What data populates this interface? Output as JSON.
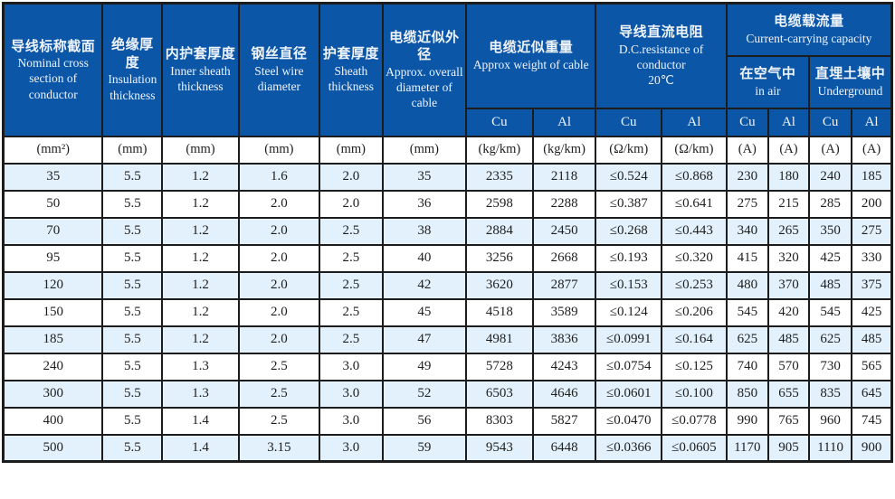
{
  "table": {
    "header": {
      "col_nominal": {
        "zh": "导线标称截面",
        "en": "Nominal cross section of conductor"
      },
      "col_insulation": {
        "zh": "绝缘厚度",
        "en": "Insulation thickness"
      },
      "col_inner_sheath": {
        "zh": "内护套厚度",
        "en": "Inner sheath thickness"
      },
      "col_steel_wire": {
        "zh": "钢丝直径",
        "en": "Steel wire diameter"
      },
      "col_sheath": {
        "zh": "护套厚度",
        "en": "Sheath thickness"
      },
      "col_diameter": {
        "zh": "电缆近似外径",
        "en": "Approx. overall diameter of cable"
      },
      "group_weight": {
        "zh": "电缆近似重量",
        "en": "Approx weight of cable"
      },
      "group_resistance": {
        "zh": "导线直流电阻",
        "en": "D.C.resistance of conductor",
        "note": "20℃"
      },
      "group_capacity": {
        "zh": "电缆载流量",
        "en": "Current-carrying capacity"
      },
      "sub_in_air": {
        "zh": "在空气中",
        "en": "in air"
      },
      "sub_underground": {
        "zh": "直埋土壤中",
        "en": "Underground"
      },
      "metal_cols": [
        "Cu",
        "Al",
        "Cu",
        "Al",
        "Cu",
        "Al",
        "Cu",
        "Al"
      ]
    },
    "units": [
      "(mm²)",
      "(mm)",
      "(mm)",
      "(mm)",
      "(mm)",
      "(mm)",
      "(kg/km)",
      "(kg/km)",
      "(Ω/km)",
      "(Ω/km)",
      "(A)",
      "(A)",
      "(A)",
      "(A)"
    ],
    "rows": [
      [
        "35",
        "5.5",
        "1.2",
        "1.6",
        "2.0",
        "35",
        "2335",
        "2118",
        "≤0.524",
        "≤0.868",
        "230",
        "180",
        "240",
        "185"
      ],
      [
        "50",
        "5.5",
        "1.2",
        "2.0",
        "2.0",
        "36",
        "2598",
        "2288",
        "≤0.387",
        "≤0.641",
        "275",
        "215",
        "285",
        "200"
      ],
      [
        "70",
        "5.5",
        "1.2",
        "2.0",
        "2.5",
        "38",
        "2884",
        "2450",
        "≤0.268",
        "≤0.443",
        "340",
        "265",
        "350",
        "275"
      ],
      [
        "95",
        "5.5",
        "1.2",
        "2.0",
        "2.5",
        "40",
        "3256",
        "2668",
        "≤0.193",
        "≤0.320",
        "415",
        "320",
        "425",
        "330"
      ],
      [
        "120",
        "5.5",
        "1.2",
        "2.0",
        "2.5",
        "42",
        "3620",
        "2877",
        "≤0.153",
        "≤0.253",
        "480",
        "370",
        "485",
        "375"
      ],
      [
        "150",
        "5.5",
        "1.2",
        "2.0",
        "2.5",
        "45",
        "4518",
        "3589",
        "≤0.124",
        "≤0.206",
        "545",
        "420",
        "545",
        "425"
      ],
      [
        "185",
        "5.5",
        "1.2",
        "2.0",
        "2.5",
        "47",
        "4981",
        "3836",
        "≤0.0991",
        "≤0.164",
        "625",
        "485",
        "625",
        "485"
      ],
      [
        "240",
        "5.5",
        "1.3",
        "2.5",
        "3.0",
        "49",
        "5728",
        "4243",
        "≤0.0754",
        "≤0.125",
        "740",
        "570",
        "730",
        "565"
      ],
      [
        "300",
        "5.5",
        "1.3",
        "2.5",
        "3.0",
        "52",
        "6503",
        "4646",
        "≤0.0601",
        "≤0.100",
        "850",
        "655",
        "835",
        "645"
      ],
      [
        "400",
        "5.5",
        "1.4",
        "2.5",
        "3.0",
        "56",
        "8303",
        "5827",
        "≤0.0470",
        "≤0.0778",
        "990",
        "765",
        "960",
        "745"
      ],
      [
        "500",
        "5.5",
        "1.4",
        "3.15",
        "3.0",
        "59",
        "9543",
        "6448",
        "≤0.0366",
        "≤0.0605",
        "1170",
        "905",
        "1110",
        "900"
      ]
    ]
  },
  "colors": {
    "header_bg": "#0c56a8",
    "alt_row_bg": "#e2f1fb",
    "border": "#1c1c1c"
  }
}
